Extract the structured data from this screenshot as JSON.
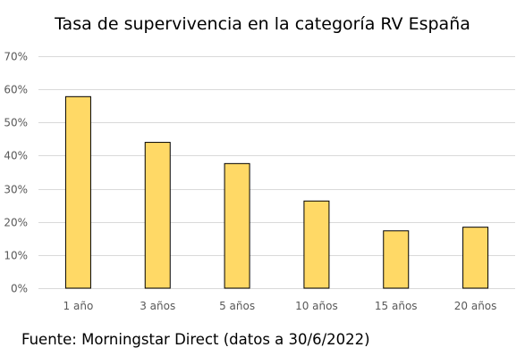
{
  "chart_data": {
    "type": "bar",
    "title": "Tasa de supervivencia en la categoría RV España",
    "xlabel": "",
    "ylabel": "",
    "categories": [
      "1 año",
      "3 años",
      "5 años",
      "10 años",
      "15 años",
      "20 años"
    ],
    "values": [
      57.8,
      44.0,
      37.6,
      26.3,
      17.3,
      18.4
    ],
    "ylim": [
      0,
      70
    ],
    "y_ticks": [
      0,
      10,
      20,
      30,
      40,
      50,
      60,
      70
    ],
    "y_tick_labels": [
      "0%",
      "10%",
      "20%",
      "30%",
      "40%",
      "50%",
      "60%",
      "70%"
    ],
    "grid": true,
    "legend": "none",
    "bar_color": "#FFD966",
    "bar_edge_color": "#000000",
    "grid_color": "#D9D9D9",
    "tick_label_color": "#595959"
  },
  "footer": {
    "source": "Fuente: Morningstar Direct (datos a 30/6/2022)"
  }
}
